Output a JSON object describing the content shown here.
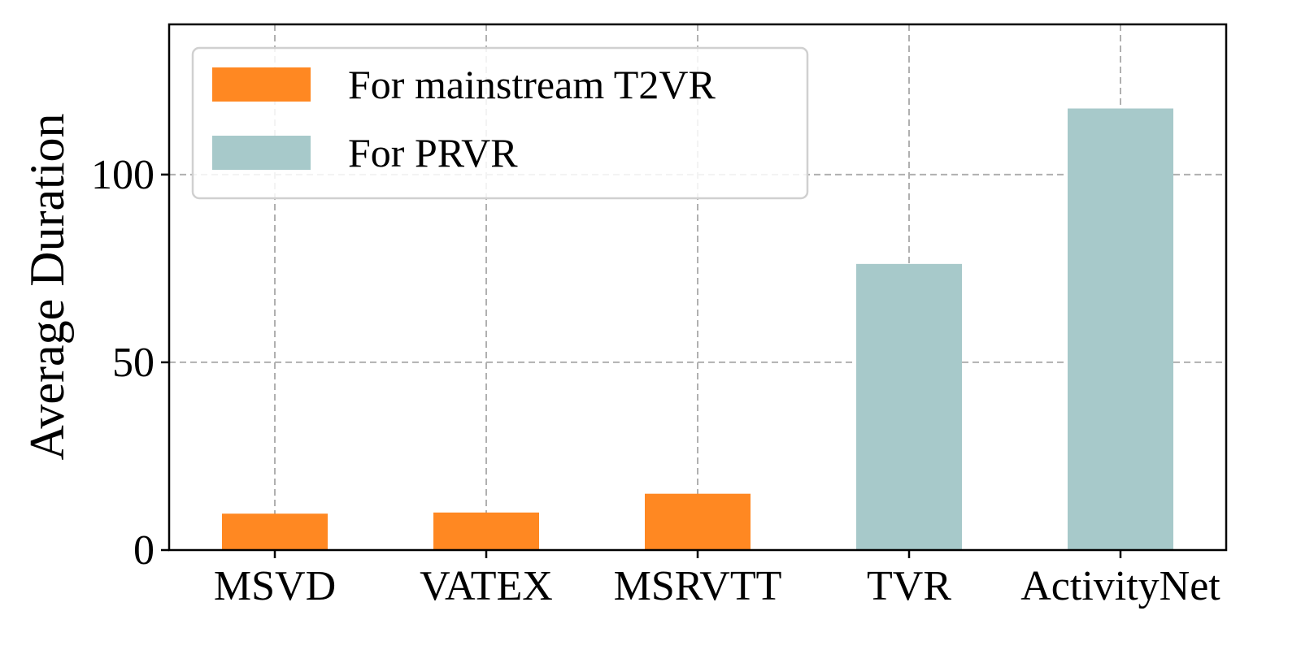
{
  "chart_data": {
    "type": "bar",
    "categories": [
      "MSVD",
      "VATEX",
      "MSRVTT",
      "TVR",
      "ActivityNet"
    ],
    "values": [
      9.7,
      10,
      15,
      76.2,
      117.6
    ],
    "series_assignment": [
      "For mainstream T2VR",
      "For mainstream T2VR",
      "For mainstream T2VR",
      "For PRVR",
      "For PRVR"
    ],
    "legend": [
      {
        "name": "For mainstream T2VR",
        "color": "#ff8822"
      },
      {
        "name": "For PRVR",
        "color": "#a7c9ca"
      }
    ],
    "xlabel": "",
    "ylabel": "Average Duration",
    "ylim": [
      0,
      140
    ],
    "yticks": [
      0,
      50,
      100
    ],
    "grid": true,
    "legend_position": "upper-left"
  }
}
